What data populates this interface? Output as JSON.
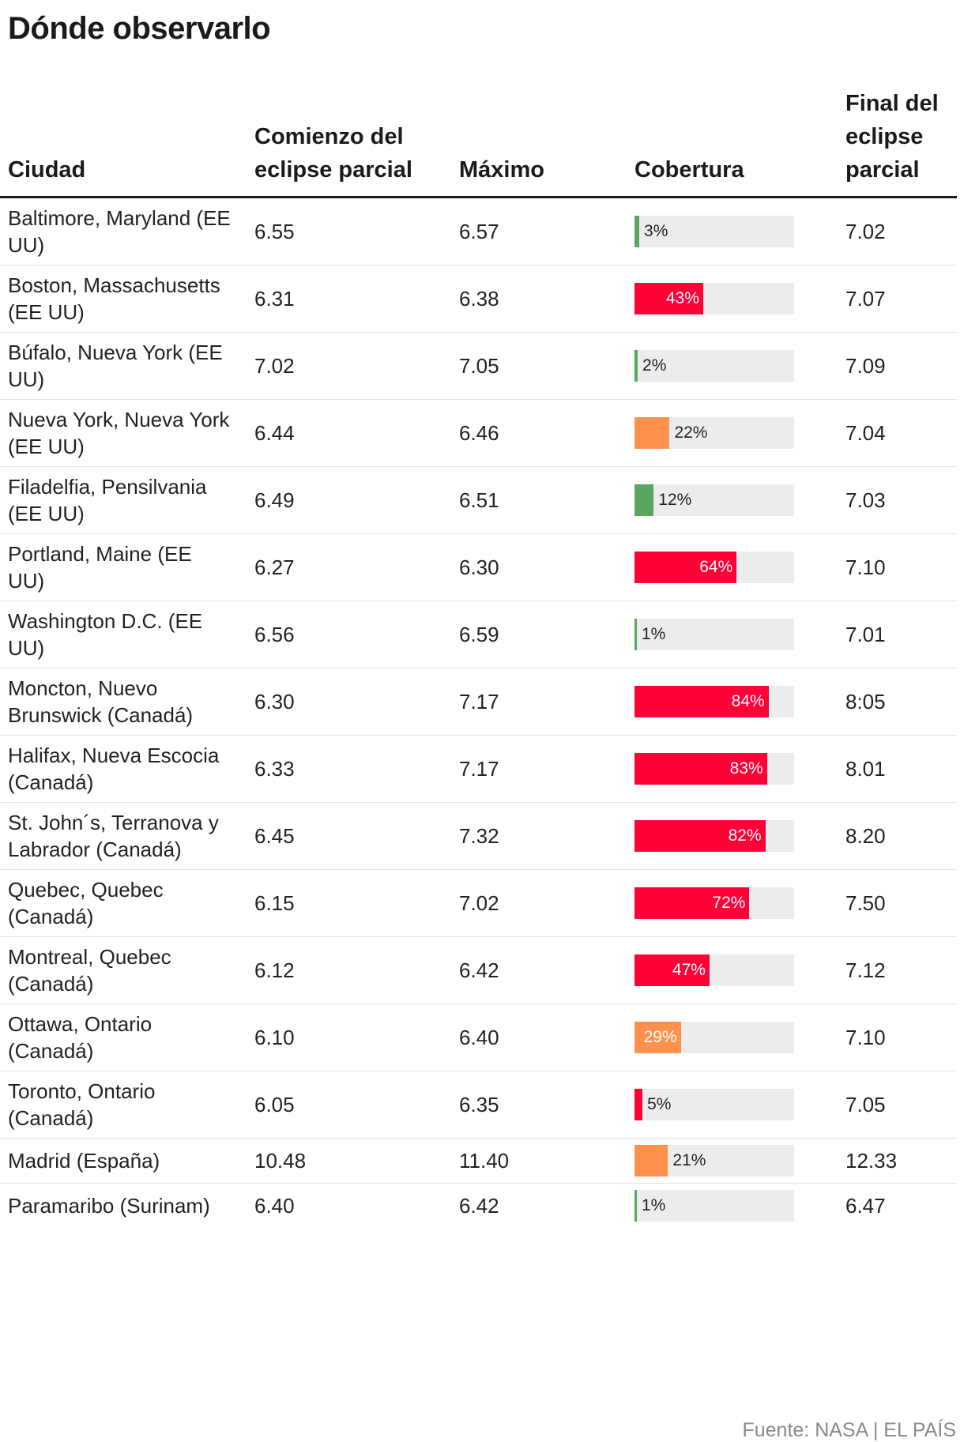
{
  "title": "Dónde observarlo",
  "source": "Fuente: NASA | EL PAÍS",
  "colors": {
    "red": "#ff0037",
    "orange": "#ff914d",
    "green": "#5aa55f",
    "track": "#ececec"
  },
  "columns": {
    "city": "Ciudad",
    "start": "Comienzo del eclipse parcial",
    "max": "Máximo",
    "coverage": "Cobertura",
    "end": "Final del eclipse parcial"
  },
  "chart_data": {
    "type": "table",
    "title": "Dónde observarlo",
    "value_column": "Cobertura",
    "value_range": [
      0,
      100
    ],
    "rows": [
      {
        "city": "Baltimore, Maryland (EE UU)",
        "start": "6.55",
        "max": "6.57",
        "coverage": 3,
        "label": "3%",
        "color": "#5aa55f",
        "end": "7.02"
      },
      {
        "city": "Boston, Massachusetts (EE UU)",
        "start": "6.31",
        "max": "6.38",
        "coverage": 43,
        "label": "43%",
        "color": "#ff0037",
        "end": "7.07"
      },
      {
        "city": "Búfalo, Nueva York (EE UU)",
        "start": "7.02",
        "max": "7.05",
        "coverage": 2,
        "label": "2%",
        "color": "#5aa55f",
        "end": "7.09"
      },
      {
        "city": "Nueva York, Nueva York (EE UU)",
        "start": "6.44",
        "max": "6.46",
        "coverage": 22,
        "label": "22%",
        "color": "#ff914d",
        "end": "7.04"
      },
      {
        "city": "Filadelfia, Pensilvania (EE UU)",
        "start": "6.49",
        "max": "6.51",
        "coverage": 12,
        "label": "12%",
        "color": "#5aa55f",
        "end": "7.03"
      },
      {
        "city": "Portland, Maine (EE UU)",
        "start": "6.27",
        "max": "6.30",
        "coverage": 64,
        "label": "64%",
        "color": "#ff0037",
        "end": "7.10"
      },
      {
        "city": "Washington D.C. (EE UU)",
        "start": "6.56",
        "max": "6.59",
        "coverage": 1,
        "label": "1%",
        "color": "#5aa55f",
        "end": "7.01"
      },
      {
        "city": "Moncton, Nuevo Brunswick (Canadá)",
        "start": "6.30",
        "max": "7.17",
        "coverage": 84,
        "label": "84%",
        "color": "#ff0037",
        "end": "8:05"
      },
      {
        "city": "Halifax, Nueva Escocia (Canadá)",
        "start": "6.33",
        "max": "7.17",
        "coverage": 83,
        "label": "83%",
        "color": "#ff0037",
        "end": "8.01"
      },
      {
        "city": "St. John´s, Terranova y Labrador (Canadá)",
        "start": "6.45",
        "max": "7.32",
        "coverage": 82,
        "label": "82%",
        "color": "#ff0037",
        "end": "8.20"
      },
      {
        "city": "Quebec, Quebec (Canadá)",
        "start": "6.15",
        "max": "7.02",
        "coverage": 72,
        "label": "72%",
        "color": "#ff0037",
        "end": "7.50"
      },
      {
        "city": "Montreal, Quebec (Canadá)",
        "start": "6.12",
        "max": "6.42",
        "coverage": 47,
        "label": "47%",
        "color": "#ff0037",
        "end": "7.12"
      },
      {
        "city": "Ottawa, Ontario (Canadá)",
        "start": "6.10",
        "max": "6.40",
        "coverage": 29,
        "label": "29%",
        "color": "#ff914d",
        "end": "7.10"
      },
      {
        "city": "Toronto, Ontario (Canadá)",
        "start": "6.05",
        "max": "6.35",
        "coverage": 5,
        "label": "5%",
        "color": "#ff0037",
        "end": "7.05"
      },
      {
        "city": "Madrid (España)",
        "start": "10.48",
        "max": "11.40",
        "coverage": 21,
        "label": "21%",
        "color": "#ff914d",
        "end": "12.33"
      },
      {
        "city": "Paramaribo (Surinam)",
        "start": "6.40",
        "max": "6.42",
        "coverage": 1,
        "label": "1%",
        "color": "#5aa55f",
        "end": "6.47"
      }
    ]
  }
}
